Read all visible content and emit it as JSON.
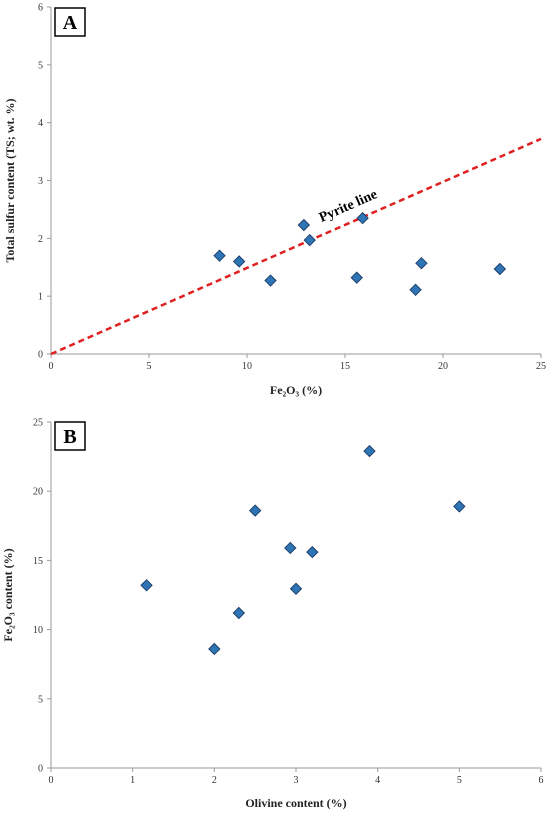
{
  "colors": {
    "marker_fill": "#2E75B6",
    "marker_stroke": "#1F3F6B",
    "trend_line": "#E02020",
    "axis": "#9a9a9a"
  },
  "chart_data": [
    {
      "type": "scatter",
      "panel_label": "A",
      "xlabel": "Fe₂O₃ (%)",
      "ylabel": "Total sulfur content (TS; wt. %)",
      "xlim": [
        0,
        25
      ],
      "ylim": [
        0,
        6
      ],
      "xticks": [
        0,
        5,
        10,
        15,
        20,
        25
      ],
      "yticks": [
        0,
        1,
        2,
        3,
        4,
        5,
        6
      ],
      "grid": false,
      "series": [
        {
          "marker": "diamond",
          "points": [
            {
              "x": 8.6,
              "y": 1.7
            },
            {
              "x": 9.6,
              "y": 1.6
            },
            {
              "x": 11.2,
              "y": 1.27
            },
            {
              "x": 12.9,
              "y": 2.23
            },
            {
              "x": 13.2,
              "y": 1.97
            },
            {
              "x": 15.6,
              "y": 1.32
            },
            {
              "x": 15.9,
              "y": 2.35
            },
            {
              "x": 18.6,
              "y": 1.11
            },
            {
              "x": 18.9,
              "y": 1.57
            },
            {
              "x": 22.9,
              "y": 1.47
            }
          ]
        }
      ],
      "reference_line": {
        "label": "Pyrite line",
        "style": "dashed",
        "points": [
          {
            "x": 0,
            "y": 0
          },
          {
            "x": 25,
            "y": 3.72
          }
        ]
      }
    },
    {
      "type": "scatter",
      "panel_label": "B",
      "xlabel": "Olivine content (%)",
      "ylabel": "Fe₂O₃ content (%)",
      "xlim": [
        0,
        6
      ],
      "ylim": [
        0,
        25
      ],
      "xticks": [
        0,
        1,
        2,
        3,
        4,
        5,
        6
      ],
      "yticks": [
        0,
        5,
        10,
        15,
        20,
        25
      ],
      "grid": false,
      "series": [
        {
          "marker": "diamond",
          "points": [
            {
              "x": 1.17,
              "y": 13.2
            },
            {
              "x": 2.0,
              "y": 8.6
            },
            {
              "x": 2.3,
              "y": 11.2
            },
            {
              "x": 2.5,
              "y": 18.6
            },
            {
              "x": 2.93,
              "y": 15.9
            },
            {
              "x": 3.0,
              "y": 12.95
            },
            {
              "x": 3.2,
              "y": 15.6
            },
            {
              "x": 3.9,
              "y": 22.9
            },
            {
              "x": 5.0,
              "y": 18.9
            }
          ]
        }
      ]
    }
  ]
}
